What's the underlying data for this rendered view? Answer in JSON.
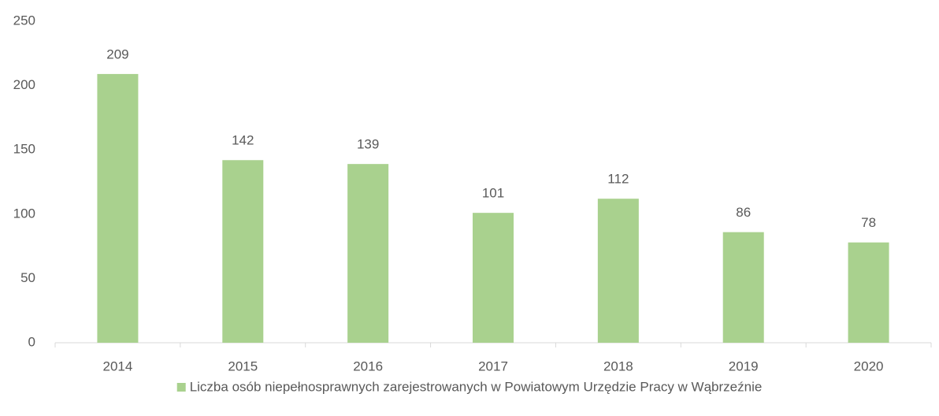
{
  "chart_data": {
    "type": "bar",
    "categories": [
      "2014",
      "2015",
      "2016",
      "2017",
      "2018",
      "2019",
      "2020"
    ],
    "series": [
      {
        "name": "Liczba osób niepełnosprawnych zarejestrowanych w Powiatowym Urzędzie Pracy w Wąbrzeźnie",
        "color": "#a9d18e",
        "values": [
          209,
          142,
          139,
          101,
          112,
          86,
          78
        ]
      }
    ],
    "ylim": [
      0,
      250
    ],
    "yticks": [
      0,
      50,
      100,
      150,
      200,
      250
    ],
    "grid": false,
    "legend": "bottom"
  }
}
